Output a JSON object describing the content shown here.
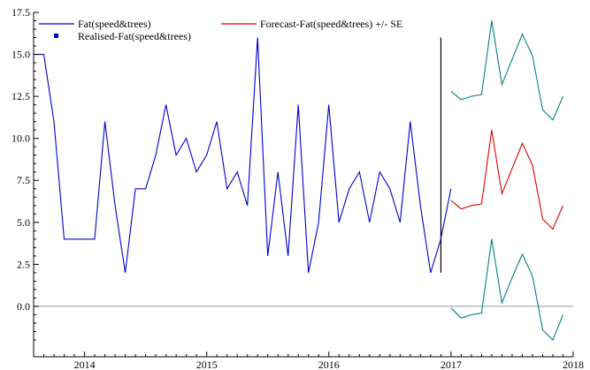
{
  "chart_data": {
    "type": "line",
    "x_start": 2013.583,
    "x_step": 0.08333,
    "xlim": [
      2013.583,
      2018.0
    ],
    "ylim": [
      -3.0,
      17.5
    ],
    "y_ticks": [
      "0.0",
      "2.5",
      "5.0",
      "7.5",
      "10.0",
      "12.5",
      "15.0",
      "17.5"
    ],
    "y_tick_values": [
      0.0,
      2.5,
      5.0,
      7.5,
      10.0,
      12.5,
      15.0,
      17.5
    ],
    "x_ticks": [
      "2014",
      "2015",
      "2016",
      "2017",
      "2018"
    ],
    "x_tick_values": [
      2014,
      2015,
      2016,
      2017,
      2018
    ],
    "zero_line": 0.0,
    "forecast_start_line": {
      "x": 2016.917,
      "y_from": 2.0,
      "y_to": 16.0
    },
    "legend": [
      {
        "label": "Fat(speed&trees)",
        "color": "#0000cc",
        "marker": "line"
      },
      {
        "label": "Forecast-Fat(speed&trees) +/- SE",
        "color": "#dd0000",
        "marker": "line"
      },
      {
        "label": "Realised-Fat(speed&trees)",
        "color": "#0000cc",
        "marker": "square"
      }
    ],
    "series": [
      {
        "name": "Fat(speed&trees)",
        "color": "#0000cc",
        "x_start": 2013.583,
        "values": [
          15,
          15,
          11,
          4,
          4,
          4,
          4,
          11,
          6,
          2,
          7,
          7,
          9,
          12,
          9,
          10,
          8,
          9,
          11,
          7,
          8,
          6,
          16,
          3,
          8,
          3,
          12,
          2,
          5,
          12,
          5,
          7,
          8,
          5,
          8,
          7,
          5,
          11,
          6,
          2,
          4,
          7
        ]
      },
      {
        "name": "Forecast-Fat(speed&trees)",
        "color": "#dd0000",
        "x_start": 2017.0,
        "values": [
          6.3,
          5.8,
          6.0,
          6.1,
          10.5,
          6.7,
          8.2,
          9.7,
          8.4,
          5.2,
          4.6,
          6.0
        ]
      },
      {
        "name": "Forecast +SE",
        "color": "#008080",
        "x_start": 2017.0,
        "values": [
          12.8,
          12.3,
          12.5,
          12.6,
          17.0,
          13.2,
          14.7,
          16.2,
          14.9,
          11.7,
          11.1,
          12.5
        ]
      },
      {
        "name": "Forecast -SE",
        "color": "#008080",
        "x_start": 2017.0,
        "values": [
          -0.1,
          -0.7,
          -0.5,
          -0.4,
          4.0,
          0.2,
          1.7,
          3.1,
          1.8,
          -1.4,
          -2.0,
          -0.5
        ]
      }
    ]
  }
}
